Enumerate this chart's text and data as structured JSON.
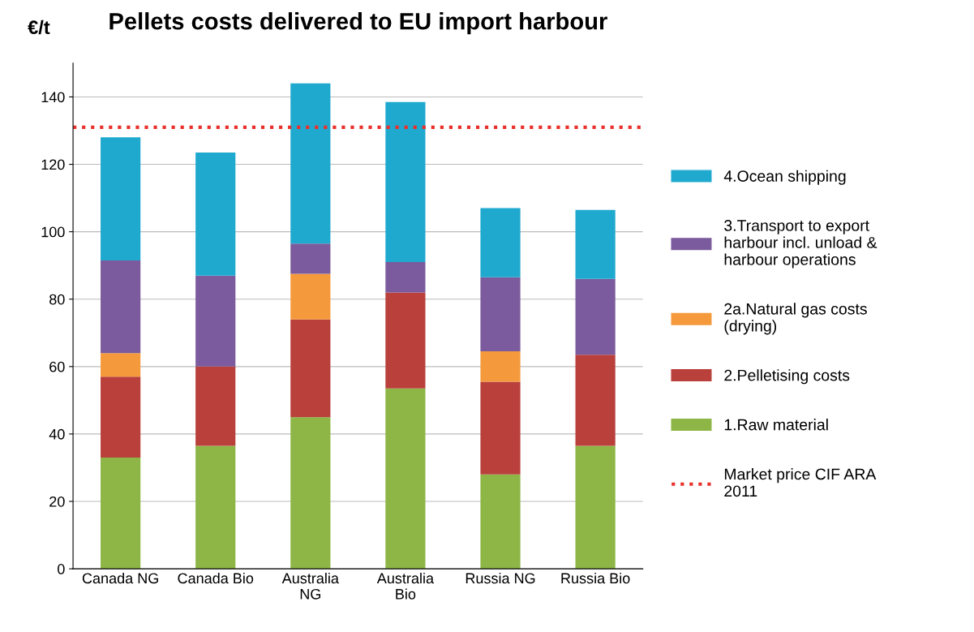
{
  "chart_data": {
    "type": "bar",
    "title": "Pellets costs delivered to EU import harbour",
    "ylabel": "€/t",
    "categories": [
      "Canada NG",
      "Canada Bio",
      "Australia\nNG",
      "Australia\nBio",
      "Russia NG",
      "Russia Bio"
    ],
    "stacked": true,
    "series": [
      {
        "name": "1.Raw material",
        "color": "#8db646",
        "values": [
          33,
          36.5,
          45,
          53.5,
          28,
          36.5
        ]
      },
      {
        "name": "2.Pelletising costs",
        "color": "#b9403b",
        "values": [
          24,
          23.5,
          29,
          28.5,
          27.5,
          27
        ]
      },
      {
        "name": "2a.Natural gas costs\n(drying)",
        "color": "#f59a3c",
        "values": [
          7,
          null,
          13.5,
          null,
          9,
          null
        ]
      },
      {
        "name": "3.Transport to export\nharbour incl. unload &\nharbour operations",
        "color": "#7b5b9d",
        "values": [
          27.5,
          27,
          9,
          9,
          22,
          22.5
        ]
      },
      {
        "name": "4.Ocean shipping",
        "color": "#1fa9cf",
        "values": [
          36.5,
          36.5,
          47.5,
          47.5,
          20.5,
          20.5
        ]
      }
    ],
    "ref_lines": [
      {
        "axis": "y",
        "value": 131,
        "label": "Market price CIF ARA\n2011",
        "color": "#e8302a",
        "line_style": "dotted"
      }
    ],
    "ylim": [
      0,
      150
    ],
    "yticks": [
      0,
      20,
      40,
      60,
      80,
      100,
      120,
      140
    ],
    "grid": "y",
    "legend": "right"
  }
}
